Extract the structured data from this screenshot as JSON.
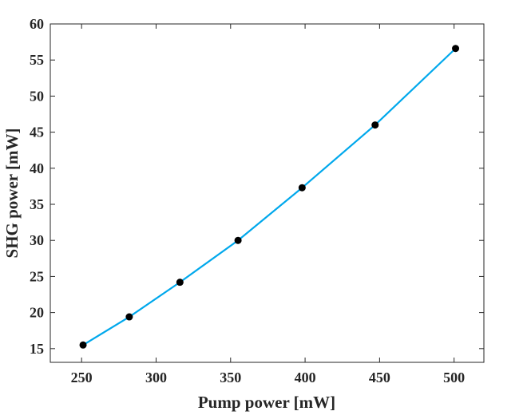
{
  "chart_data": {
    "type": "line",
    "title": "",
    "xlabel": "Pump power [mW]",
    "ylabel": "SHG power [mW]",
    "xlim": [
      229,
      520
    ],
    "ylim": [
      13.1,
      60
    ],
    "xticks": [
      250,
      300,
      350,
      400,
      450,
      500
    ],
    "yticks": [
      15,
      20,
      25,
      30,
      35,
      40,
      45,
      50,
      55,
      60
    ],
    "grid": false,
    "series": [
      {
        "name": "SHG power",
        "x": [
          251,
          282,
          316,
          355,
          398,
          447,
          501
        ],
        "y": [
          15.5,
          19.4,
          24.2,
          30.0,
          37.3,
          46.0,
          56.6
        ],
        "line_color": "#00a8ec",
        "marker_color": "#000000"
      }
    ]
  }
}
